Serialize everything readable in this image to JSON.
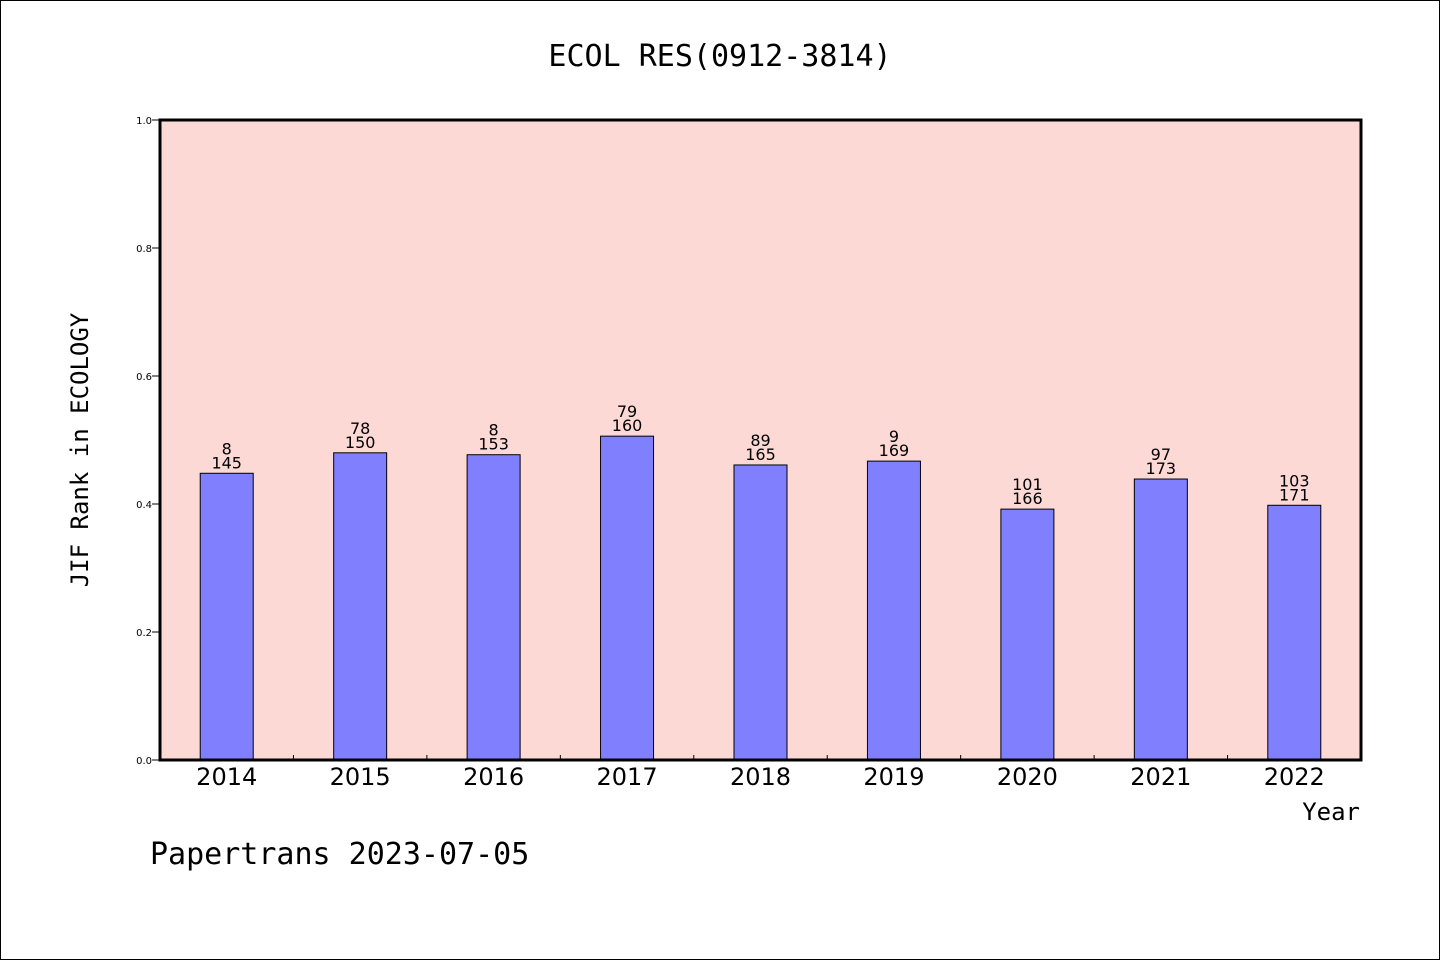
{
  "chart_data": {
    "type": "bar",
    "title": "ECOL RES(0912-3814)",
    "ylabel": "JIF Rank in ECOLOGY",
    "xlabel": "Year",
    "ylim": [
      0,
      1.0
    ],
    "yticks": [
      "0.0",
      "0.2",
      "0.4",
      "0.6",
      "0.8",
      "1.0"
    ],
    "categories": [
      "2014",
      "2015",
      "2016",
      "2017",
      "2018",
      "2019",
      "2020",
      "2021",
      "2022"
    ],
    "values": [
      0.448,
      0.48,
      0.477,
      0.506,
      0.461,
      0.467,
      0.392,
      0.439,
      0.398
    ],
    "rank_labels": [
      "8",
      "78",
      "8",
      "79",
      "89",
      "9",
      "101",
      "97",
      "103"
    ],
    "total_labels": [
      "145",
      "150",
      "153",
      "160",
      "165",
      "169",
      "166",
      "173",
      "171"
    ],
    "colors": {
      "plot_background": "#fdd9d6",
      "bar_fill": "#8080ff",
      "bar_stroke": "#000000"
    },
    "grid": false
  },
  "footer": {
    "text": "Papertrans 2023-07-05"
  }
}
